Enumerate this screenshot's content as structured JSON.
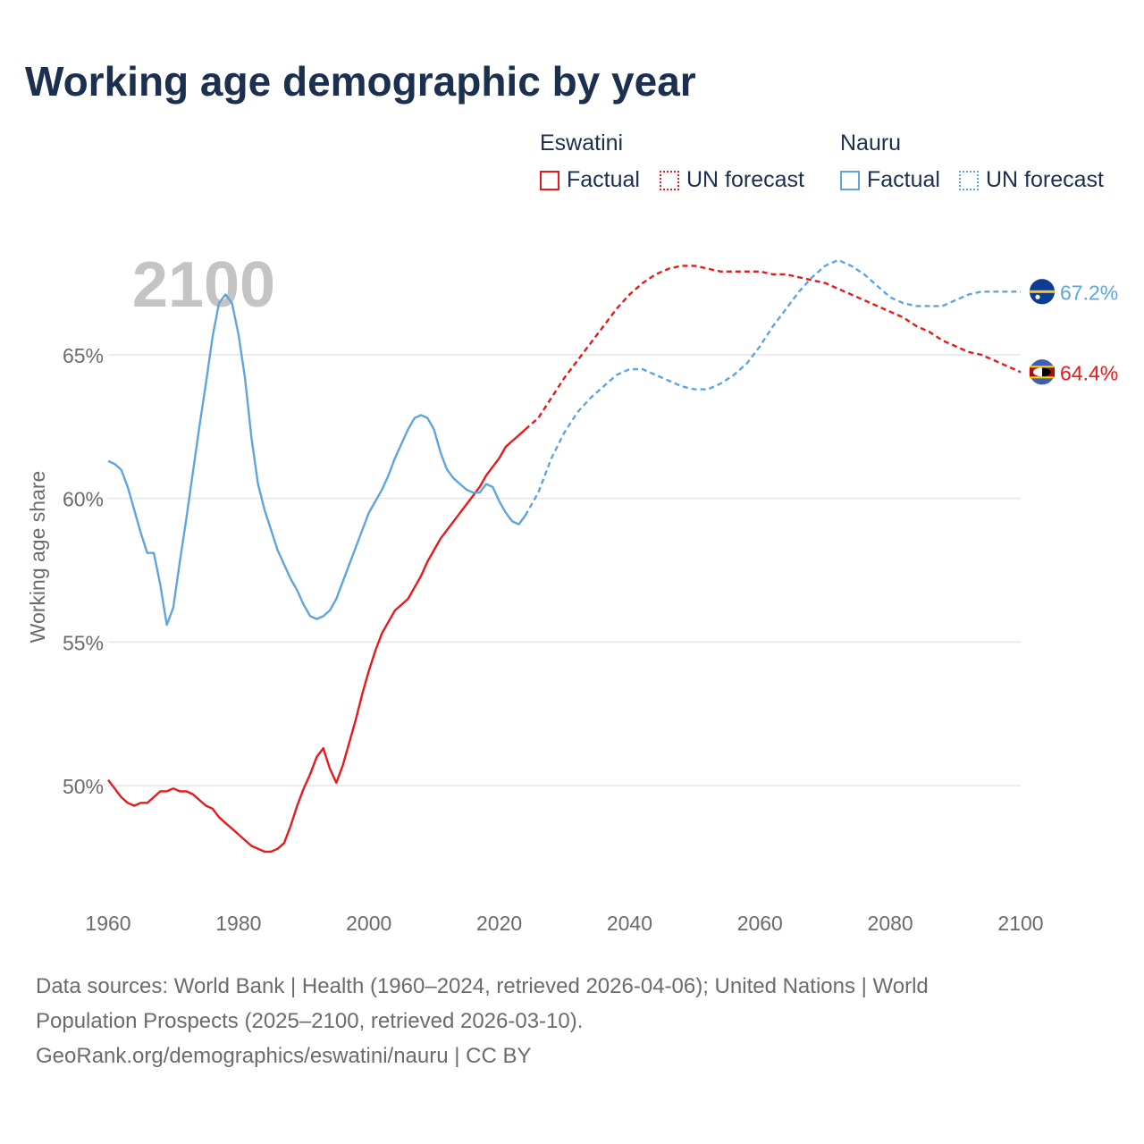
{
  "title": "Working age demographic by year",
  "legend": {
    "groups": [
      {
        "name": "Eswatini",
        "color": "#e8191a",
        "factual": "Factual",
        "forecast": "UN forecast"
      },
      {
        "name": "Nauru",
        "color": "#5ea5e0",
        "factual": "Factual",
        "forecast": "UN forecast"
      }
    ]
  },
  "chart_data": {
    "type": "line",
    "title": "Working age demographic by year",
    "xlabel": "",
    "ylabel": "Working age share",
    "xlim": [
      1960,
      2100
    ],
    "ylim": [
      46.5,
      68.5
    ],
    "x_ticks": [
      "1960",
      "1980",
      "2000",
      "2020",
      "2040",
      "2060",
      "2080",
      "2100"
    ],
    "y_ticks": [
      {
        "value": 50,
        "label": "50%"
      },
      {
        "value": 55,
        "label": "55%"
      },
      {
        "value": 60,
        "label": "60%"
      },
      {
        "value": 65,
        "label": "65%"
      }
    ],
    "year_label": "2100",
    "forecast_start": 2025,
    "series": [
      {
        "name": "Eswatini",
        "color": "#e8191a",
        "end_label": "64.4%",
        "flag_icon": "eswatini-flag-icon",
        "factual": {
          "x": [
            1960,
            1961,
            1962,
            1963,
            1964,
            1965,
            1966,
            1967,
            1968,
            1969,
            1970,
            1971,
            1972,
            1973,
            1974,
            1975,
            1976,
            1977,
            1978,
            1979,
            1980,
            1981,
            1982,
            1983,
            1984,
            1985,
            1986,
            1987,
            1988,
            1989,
            1990,
            1991,
            1992,
            1993,
            1994,
            1995,
            1996,
            1997,
            1998,
            1999,
            2000,
            2001,
            2002,
            2003,
            2004,
            2005,
            2006,
            2007,
            2008,
            2009,
            2010,
            2011,
            2012,
            2013,
            2014,
            2015,
            2016,
            2017,
            2018,
            2019,
            2020,
            2021,
            2022,
            2023,
            2024
          ],
          "y": [
            50.2,
            49.9,
            49.6,
            49.4,
            49.3,
            49.4,
            49.4,
            49.6,
            49.8,
            49.8,
            49.9,
            49.8,
            49.8,
            49.7,
            49.5,
            49.3,
            49.2,
            48.9,
            48.7,
            48.5,
            48.3,
            48.1,
            47.9,
            47.8,
            47.7,
            47.7,
            47.8,
            48.0,
            48.6,
            49.3,
            49.9,
            50.4,
            51.0,
            51.3,
            50.6,
            50.1,
            50.7,
            51.5,
            52.3,
            53.2,
            54.0,
            54.7,
            55.3,
            55.7,
            56.1,
            56.3,
            56.5,
            56.9,
            57.3,
            57.8,
            58.2,
            58.6,
            58.9,
            59.2,
            59.5,
            59.8,
            60.1,
            60.4,
            60.8,
            61.1,
            61.4,
            61.8,
            62.0,
            62.2,
            62.4
          ]
        },
        "forecast": {
          "x": [
            2024,
            2026,
            2028,
            2030,
            2032,
            2034,
            2036,
            2038,
            2040,
            2042,
            2044,
            2046,
            2048,
            2050,
            2052,
            2054,
            2056,
            2058,
            2060,
            2062,
            2064,
            2066,
            2068,
            2070,
            2072,
            2074,
            2076,
            2078,
            2080,
            2082,
            2084,
            2086,
            2088,
            2090,
            2092,
            2094,
            2096,
            2098,
            2100
          ],
          "y": [
            62.4,
            62.8,
            63.5,
            64.2,
            64.8,
            65.4,
            66.0,
            66.6,
            67.1,
            67.5,
            67.8,
            68.0,
            68.1,
            68.1,
            68.0,
            67.9,
            67.9,
            67.9,
            67.9,
            67.8,
            67.8,
            67.7,
            67.6,
            67.5,
            67.3,
            67.1,
            66.9,
            66.7,
            66.5,
            66.3,
            66.0,
            65.8,
            65.5,
            65.3,
            65.1,
            65.0,
            64.8,
            64.6,
            64.4
          ]
        }
      },
      {
        "name": "Nauru",
        "color": "#5ea5e0",
        "end_label": "67.2%",
        "flag_icon": "nauru-flag-icon",
        "factual": {
          "x": [
            1960,
            1961,
            1962,
            1963,
            1964,
            1965,
            1966,
            1967,
            1968,
            1969,
            1970,
            1971,
            1972,
            1973,
            1974,
            1975,
            1976,
            1977,
            1978,
            1979,
            1980,
            1981,
            1982,
            1983,
            1984,
            1985,
            1986,
            1987,
            1988,
            1989,
            1990,
            1991,
            1992,
            1993,
            1994,
            1995,
            1996,
            1997,
            1998,
            1999,
            2000,
            2001,
            2002,
            2003,
            2004,
            2005,
            2006,
            2007,
            2008,
            2009,
            2010,
            2011,
            2012,
            2013,
            2014,
            2015,
            2016,
            2017,
            2018,
            2019,
            2020,
            2021,
            2022,
            2023,
            2024
          ],
          "y": [
            61.3,
            61.2,
            61.0,
            60.4,
            59.6,
            58.8,
            58.1,
            58.1,
            57.0,
            55.6,
            56.2,
            57.8,
            59.3,
            60.9,
            62.5,
            64.0,
            65.6,
            66.8,
            67.1,
            66.8,
            65.7,
            64.2,
            62.1,
            60.5,
            59.6,
            58.9,
            58.2,
            57.7,
            57.2,
            56.8,
            56.3,
            55.9,
            55.8,
            55.9,
            56.1,
            56.5,
            57.1,
            57.7,
            58.3,
            58.9,
            59.5,
            59.9,
            60.3,
            60.8,
            61.4,
            61.9,
            62.4,
            62.8,
            62.9,
            62.8,
            62.4,
            61.6,
            61.0,
            60.7,
            60.5,
            60.3,
            60.2,
            60.2,
            60.5,
            60.4,
            59.9,
            59.5,
            59.2,
            59.1,
            59.4
          ]
        },
        "forecast": {
          "x": [
            2024,
            2026,
            2028,
            2030,
            2032,
            2034,
            2036,
            2038,
            2040,
            2042,
            2044,
            2046,
            2048,
            2050,
            2052,
            2054,
            2056,
            2058,
            2060,
            2062,
            2064,
            2066,
            2068,
            2070,
            2072,
            2074,
            2076,
            2078,
            2080,
            2082,
            2084,
            2086,
            2088,
            2090,
            2092,
            2094,
            2096,
            2098,
            2100
          ],
          "y": [
            59.4,
            60.2,
            61.4,
            62.3,
            63.0,
            63.5,
            63.9,
            64.3,
            64.5,
            64.5,
            64.3,
            64.1,
            63.9,
            63.8,
            63.8,
            64.0,
            64.3,
            64.7,
            65.3,
            66.0,
            66.6,
            67.2,
            67.7,
            68.1,
            68.3,
            68.1,
            67.8,
            67.4,
            67.0,
            66.8,
            66.7,
            66.7,
            66.7,
            66.9,
            67.1,
            67.2,
            67.2,
            67.2,
            67.2
          ]
        }
      }
    ]
  },
  "footer": {
    "line1": "Data sources: World Bank | Health (1960–2024, retrieved 2026-04-06); United Nations | World",
    "line2": "Population Prospects (2025–2100, retrieved 2026-03-10).",
    "line3": "GeoRank.org/demographics/eswatini/nauru | CC BY"
  }
}
